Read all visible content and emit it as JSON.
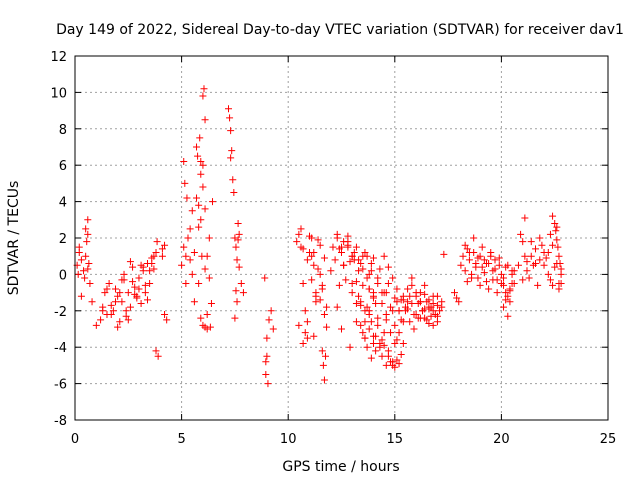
{
  "chart_data": {
    "type": "scatter",
    "title": "Day 149 of 2022, Sidereal Day-to-day VTEC variation (SDTVAR) for receiver dav1",
    "xlabel": "GPS time / hours",
    "ylabel": "SDTVAR / TECUs",
    "xlim": [
      0,
      25
    ],
    "ylim": [
      -8,
      12
    ],
    "xticks": [
      0,
      5,
      10,
      15,
      20,
      25
    ],
    "yticks": [
      -8,
      -6,
      -4,
      -2,
      0,
      2,
      4,
      6,
      8,
      10,
      12
    ],
    "grid": true,
    "marker": "+",
    "color": "#ff0000",
    "series": [
      {
        "name": "SDTVAR",
        "x": [
          0.1,
          0.2,
          0.3,
          0.4,
          0.5,
          0.6,
          0.7,
          0.5,
          0.6,
          0.3,
          0.2,
          0.15,
          0.55,
          0.6,
          0.65,
          0.45,
          0.8,
          1.0,
          1.2,
          1.3,
          1.4,
          1.5,
          1.6,
          1.7,
          1.8,
          1.9,
          2.0,
          2.1,
          2.2,
          2.3,
          2.4,
          2.5,
          2.6,
          2.7,
          2.8,
          2.9,
          3.0,
          3.1,
          3.2,
          3.3,
          3.4,
          3.5,
          3.6,
          3.7,
          3.8,
          1.3,
          1.5,
          1.7,
          1.9,
          2.1,
          2.3,
          2.5,
          2.7,
          2.9,
          3.1,
          3.3,
          3.5,
          3.7,
          2.0,
          2.2,
          2.4,
          2.6,
          2.8,
          3.0,
          3.2,
          3.4,
          3.6,
          3.8,
          3.9,
          4.1,
          4.2,
          4.2,
          4.3,
          4.1,
          3.85,
          5.0,
          5.1,
          5.2,
          5.3,
          5.4,
          5.5,
          5.6,
          5.7,
          5.8,
          5.9,
          6.0,
          6.1,
          6.2,
          6.3,
          6.4,
          5.2,
          5.4,
          5.6,
          5.8,
          5.9,
          6.0,
          6.1,
          6.0,
          5.9,
          6.2,
          5.1,
          5.15,
          5.25,
          5.5,
          5.7,
          5.75,
          5.8,
          5.9,
          6.0,
          6.05,
          6.1,
          5.85,
          5.95,
          6.1,
          6.3,
          6.45,
          6.2,
          6.35,
          7.2,
          7.25,
          7.3,
          7.35,
          7.4,
          7.45,
          7.5,
          7.55,
          7.6,
          7.65,
          7.7,
          7.8,
          7.9,
          7.5,
          7.6,
          7.7,
          7.55,
          7.3,
          7.65,
          8.9,
          9.0,
          9.0,
          8.95,
          9.05,
          9.1,
          9.2,
          9.3,
          8.95,
          10.4,
          10.5,
          10.6,
          10.7,
          10.8,
          10.9,
          11.0,
          11.1,
          11.2,
          11.3,
          11.4,
          11.5,
          11.6,
          11.7,
          11.8,
          10.6,
          10.7,
          10.8,
          10.9,
          11.0,
          11.1,
          11.2,
          11.3,
          11.5,
          11.6,
          10.5,
          10.7,
          10.9,
          11.1,
          11.3,
          11.5,
          11.7,
          11.6,
          11.65,
          11.7,
          11.75,
          11.8,
          11.2,
          11.4,
          12.1,
          12.0,
          12.2,
          12.4,
          12.5,
          12.6,
          12.7,
          12.8,
          12.9,
          13.0,
          13.1,
          13.2,
          13.3,
          13.4,
          13.5,
          13.6,
          13.7,
          13.8,
          13.9,
          14.0,
          12.3,
          12.5,
          12.9,
          13.2,
          13.4,
          13.6,
          13.8,
          14.0,
          12.3,
          12.4,
          12.6,
          12.8,
          13.0,
          13.2,
          13.4,
          13.6,
          13.8,
          14.0,
          13.5,
          13.6,
          13.7,
          13.8,
          13.9,
          14.0,
          14.1,
          14.2,
          14.3,
          14.4,
          14.5,
          14.6,
          14.7,
          14.8,
          14.9,
          15.0,
          15.1,
          15.2,
          15.3,
          15.4,
          13.8,
          14.0,
          14.2,
          14.4,
          14.6,
          14.8,
          15.0,
          15.2,
          15.4,
          15.6,
          15.8,
          16.0,
          16.2,
          16.4,
          16.6,
          16.8,
          17.0,
          14.5,
          14.7,
          14.9,
          15.1,
          15.3,
          15.5,
          15.7,
          15.9,
          16.1,
          16.3,
          16.5,
          16.7,
          16.9,
          14.2,
          14.4,
          14.6,
          14.8,
          15.0,
          15.2,
          15.4,
          15.6,
          15.8,
          16.0,
          16.2,
          16.4,
          16.6,
          16.8,
          17.0,
          15.0,
          15.2,
          15.4,
          15.6,
          15.8,
          16.0,
          16.2,
          16.4,
          16.6,
          16.8,
          17.0,
          17.2,
          16.2,
          16.4,
          16.6,
          16.8,
          17.0,
          17.1,
          17.2,
          13.2,
          13.4,
          13.6,
          13.8,
          14.0,
          14.2,
          14.4,
          14.6,
          12.8,
          13.0,
          13.3,
          13.5,
          13.7,
          13.9,
          14.1,
          14.3,
          14.5,
          14.7,
          14.9,
          15.1,
          12.3,
          12.5,
          12.6,
          12.8,
          13.0,
          13.1,
          13.3,
          13.5,
          13.7,
          13.9,
          14.1,
          14.3,
          14.5,
          14.7,
          14.9,
          15.1,
          15.3,
          15.5,
          15.7,
          15.9,
          16.1,
          16.3,
          16.5,
          16.7,
          17.3,
          17.8,
          17.9,
          18.0,
          18.1,
          18.2,
          18.3,
          18.4,
          18.5,
          18.6,
          18.7,
          18.8,
          18.9,
          19.0,
          19.1,
          19.2,
          19.3,
          19.4,
          19.5,
          19.6,
          19.7,
          19.8,
          19.9,
          20.0,
          20.1,
          20.2,
          20.3,
          20.4,
          20.5,
          20.6,
          18.3,
          18.5,
          18.7,
          18.9,
          19.1,
          19.3,
          19.5,
          19.7,
          19.9,
          20.1,
          20.3,
          20.5,
          18.4,
          18.6,
          18.8,
          19.0,
          19.2,
          19.4,
          19.6,
          19.8,
          20.0,
          20.2,
          20.4,
          20.1,
          20.3,
          20.5,
          20.6,
          20.2,
          20.4,
          20.8,
          21.0,
          21.2,
          21.4,
          21.6,
          21.8,
          22.0,
          22.2,
          22.4,
          22.6,
          22.8,
          20.9,
          21.1,
          21.3,
          21.5,
          21.7,
          21.9,
          22.1,
          22.3,
          22.5,
          22.7,
          21.0,
          21.2,
          21.4,
          21.6,
          21.8,
          22.0,
          22.2,
          22.4,
          22.6,
          22.8,
          22.4,
          22.5,
          22.55,
          22.6,
          22.65,
          22.7,
          22.75,
          21.1,
          22.8,
          22.3,
          22.7
        ],
        "y": [
          0.5,
          1.2,
          0.8,
          0.2,
          1.0,
          0.3,
          -0.5,
          2.5,
          3.0,
          -1.2,
          1.5,
          0.0,
          1.8,
          2.2,
          0.6,
          -0.2,
          -1.5,
          -2.8,
          -2.5,
          -1.8,
          -1.0,
          -2.2,
          -0.5,
          -1.7,
          -2.0,
          -0.8,
          -1.2,
          -2.6,
          -1.5,
          -0.3,
          -2.3,
          -1.0,
          -1.8,
          0.4,
          -0.7,
          -1.3,
          -0.2,
          -1.6,
          0.2,
          -1.0,
          0.6,
          -0.5,
          0.9,
          0.3,
          1.2,
          -2.0,
          -0.8,
          -2.2,
          -1.5,
          -1.0,
          0.0,
          -2.5,
          -0.4,
          -1.2,
          0.5,
          -0.6,
          0.2,
          1.0,
          -2.9,
          -0.3,
          -2.0,
          0.7,
          -1.1,
          -0.8,
          0.4,
          -1.4,
          0.6,
          -4.2,
          -4.5,
          1.0,
          1.6,
          -2.2,
          -2.5,
          1.4,
          1.8,
          0.5,
          1.5,
          -0.5,
          2.0,
          0.8,
          3.5,
          1.2,
          4.2,
          2.6,
          3.0,
          4.8,
          3.6,
          1.0,
          -0.2,
          -1.6,
          1.0,
          2.5,
          -1.5,
          -0.5,
          -2.4,
          -2.8,
          -2.9,
          6.0,
          5.5,
          -3.0,
          6.2,
          5.0,
          4.2,
          0.0,
          7.0,
          6.5,
          3.8,
          6.2,
          9.8,
          10.2,
          8.5,
          7.5,
          1.0,
          0.3,
          2.0,
          4.0,
          -2.2,
          -2.9,
          9.1,
          8.6,
          7.9,
          6.8,
          5.2,
          4.5,
          2.0,
          1.5,
          0.8,
          1.9,
          2.2,
          -0.5,
          -1.0,
          -2.4,
          -1.5,
          0.4,
          -0.9,
          6.4,
          2.8,
          -0.2,
          -3.5,
          -4.5,
          -5.5,
          -6.0,
          -2.5,
          -2.0,
          -3.0,
          -4.8,
          1.8,
          2.2,
          1.5,
          -0.5,
          -2.0,
          -3.5,
          1.2,
          2.0,
          0.5,
          -1.0,
          0.3,
          1.6,
          -0.8,
          0.9,
          -1.8,
          2.5,
          1.4,
          -3.2,
          -2.6,
          2.1,
          -0.3,
          1.2,
          -1.5,
          0.0,
          -0.6,
          -2.8,
          -3.8,
          0.8,
          1.0,
          -1.2,
          -1.4,
          -2.2,
          -4.2,
          -5.0,
          -5.8,
          -4.5,
          -2.9,
          -3.4,
          1.9,
          1.5,
          0.2,
          0.8,
          -0.6,
          1.5,
          0.5,
          -0.3,
          1.8,
          0.7,
          -1.0,
          1.2,
          -0.4,
          0.8,
          -1.5,
          0.3,
          -2.0,
          1.0,
          -0.8,
          0.2,
          -1.3,
          -1.8,
          -3.0,
          -4.0,
          -2.6,
          -1.7,
          -3.5,
          -2.2,
          -3.8,
          2.2,
          1.4,
          1.8,
          2.1,
          1.0,
          1.5,
          0.6,
          1.2,
          0.0,
          0.9,
          -3.2,
          -2.6,
          -4.0,
          -3.0,
          -4.6,
          -3.4,
          -4.2,
          -2.8,
          -3.8,
          -4.5,
          -3.9,
          -5.0,
          -4.2,
          -4.8,
          -5.0,
          -5.1,
          -4.7,
          -4.9,
          -4.4,
          -3.8,
          -0.8,
          -1.2,
          -0.5,
          -1.6,
          -1.0,
          -1.8,
          -1.3,
          -2.0,
          -1.4,
          -1.9,
          -1.6,
          -2.2,
          -1.5,
          -2.4,
          -1.8,
          -2.0,
          -1.7,
          1.0,
          0.4,
          -0.2,
          -0.8,
          -1.4,
          -2.0,
          -2.6,
          -3.0,
          -2.4,
          -2.0,
          -2.5,
          -1.8,
          -2.2,
          -0.2,
          -1.0,
          -2.5,
          -3.2,
          -2.8,
          -2.0,
          -1.2,
          -0.8,
          -0.2,
          -1.0,
          -1.5,
          -1.1,
          -1.9,
          -1.2,
          -2.6,
          -3.8,
          -3.2,
          -2.6,
          -1.5,
          -0.6,
          -1.2,
          -2.4,
          -1.9,
          -2.7,
          -1.6,
          -2.3,
          -1.8,
          -1.0,
          -0.6,
          -1.4,
          -2.8,
          -1.2,
          -2.0,
          -1.5,
          -1.6,
          -2.8,
          -3.5,
          -2.0,
          -1.0,
          -2.4,
          -3.6,
          -2.2,
          1.6,
          1.0,
          0.2,
          -0.6,
          -1.8,
          -2.6,
          -3.4,
          -4.0,
          -3.2,
          -4.5,
          -4.8,
          -3.6,
          2.0,
          1.2,
          0.5,
          1.5,
          -0.5,
          0.8,
          -1.2,
          1.0,
          -0.2,
          0.6,
          -1.6,
          0.3,
          -1.0,
          -0.5,
          -2.0,
          -1.5,
          -2.5,
          -1.8,
          -1.2,
          -2.2,
          -1.6,
          -2.0,
          -1.5,
          -2.3,
          1.1,
          -1.0,
          -1.3,
          -1.5,
          0.5,
          1.0,
          0.2,
          1.4,
          0.8,
          0.0,
          1.2,
          0.6,
          -0.2,
          1.0,
          0.4,
          0.8,
          -0.4,
          0.6,
          1.0,
          0.2,
          0.8,
          -0.3,
          0.5,
          0.0,
          -0.6,
          0.4,
          -1.2,
          -0.8,
          0.0,
          -0.5,
          1.6,
          1.2,
          2.0,
          0.9,
          1.5,
          0.6,
          1.2,
          0.3,
          0.9,
          -0.2,
          0.5,
          0.2,
          -0.4,
          -0.2,
          0.4,
          -0.6,
          0.1,
          -0.8,
          -0.3,
          -1.0,
          -0.5,
          -1.4,
          -0.9,
          -1.8,
          -2.3,
          -0.5,
          0.2,
          -1.0,
          -1.5,
          0.5,
          1.8,
          0.2,
          1.0,
          1.4,
          0.8,
          1.2,
          0.0,
          1.6,
          0.6,
          0.3,
          2.2,
          1.0,
          -0.2,
          0.5,
          -0.6,
          1.6,
          0.9,
          -0.3,
          0.4,
          -0.5,
          -0.3,
          0.7,
          1.8,
          0.6,
          2.0,
          0.5,
          1.2,
          -0.6,
          2.6,
          0.0,
          3.2,
          2.8,
          2.4,
          1.9,
          1.5,
          1.0,
          0.6,
          3.1,
          -0.5,
          2.2,
          -0.8
        ]
      }
    ]
  }
}
